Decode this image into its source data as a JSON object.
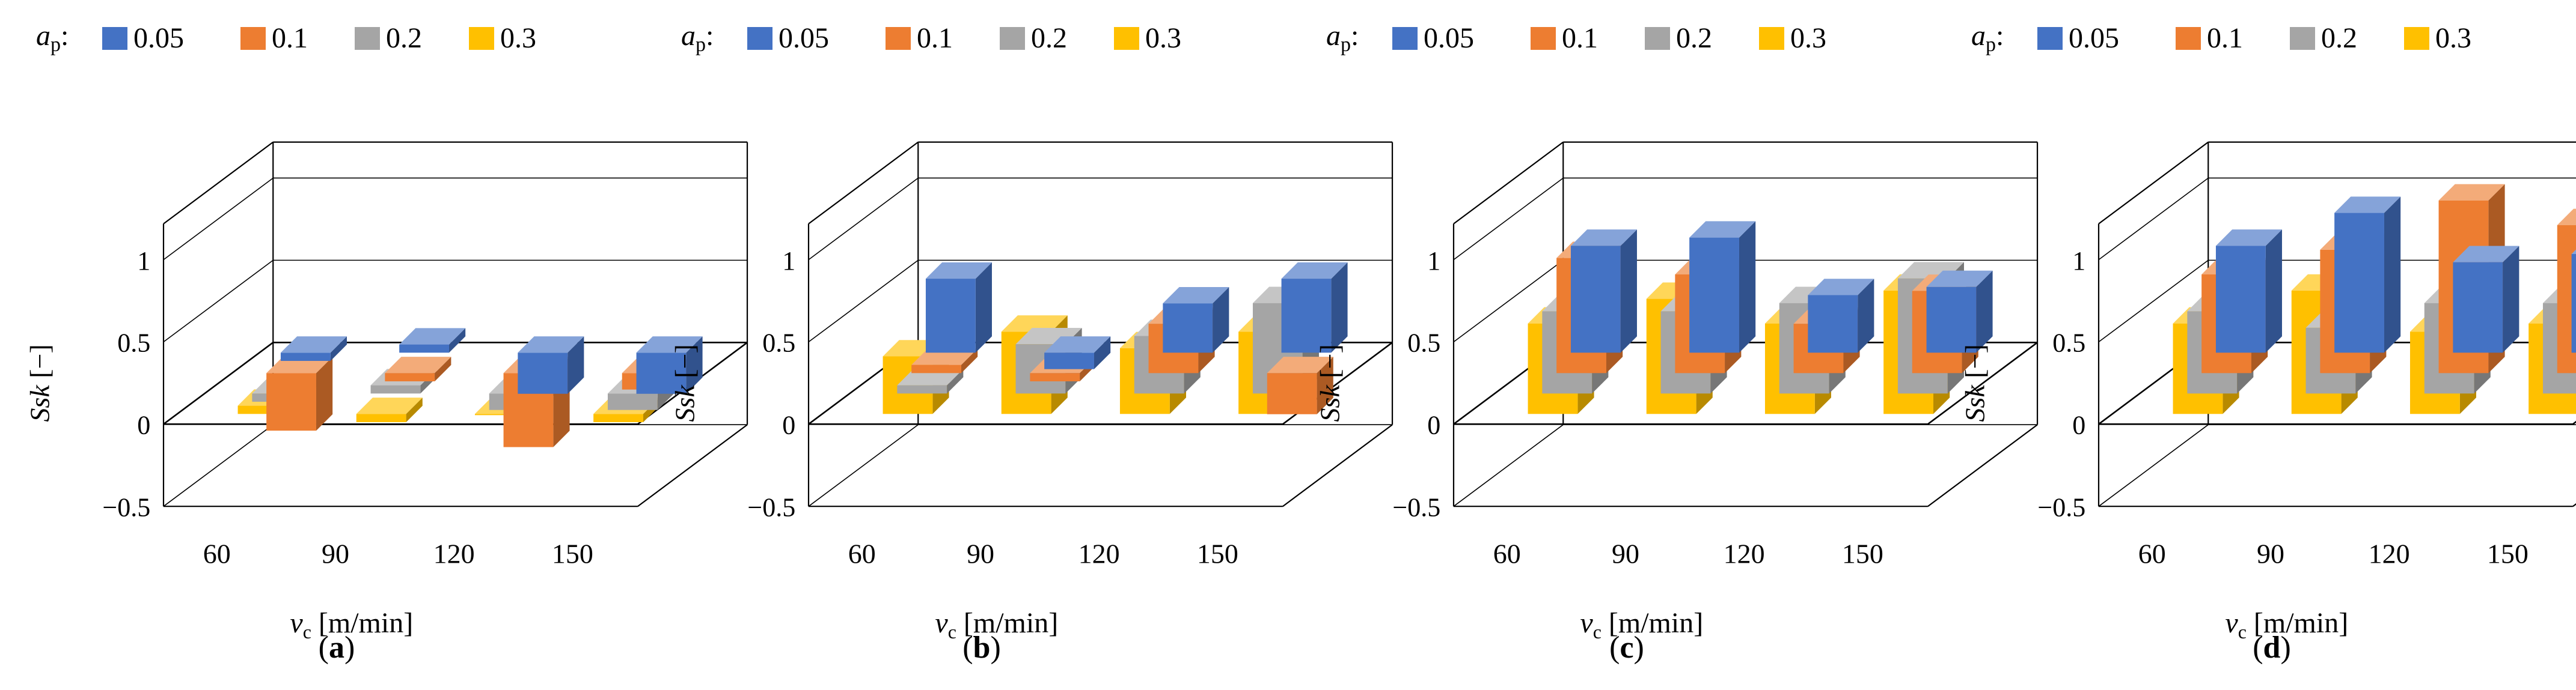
{
  "figure": {
    "legend_var": "a",
    "legend_sub": "p",
    "legend_colon": ":",
    "xlabel_var": "v",
    "xlabel_sub": "c",
    "xlabel_unit": "[m/min]",
    "ylabel_var": "Ssk",
    "ylabel_unit": "[−]"
  },
  "colors": {
    "0.05": "#4472C4",
    "0.1": "#ED7D31",
    "0.2": "#A5A5A5",
    "0.3": "#FFC000"
  },
  "chart_data": [
    {
      "type": "bar",
      "panel_label": "a",
      "categories": [
        "60",
        "90",
        "120",
        "150"
      ],
      "series": [
        {
          "name": "0.05",
          "values": [
            -0.05,
            0.05,
            -0.25,
            -0.25
          ]
        },
        {
          "name": "0.1",
          "values": [
            -0.35,
            -0.05,
            -0.45,
            -0.1
          ]
        },
        {
          "name": "0.2",
          "values": [
            -0.05,
            0.05,
            -0.1,
            -0.1
          ]
        },
        {
          "name": "0.3",
          "values": [
            0.05,
            -0.05,
            0.0,
            -0.05
          ]
        }
      ],
      "legend_title": "a_p",
      "xlabel": "v_c [m/min]",
      "ylabel": "Ssk [−]",
      "yticks": [
        "−0.5",
        "0",
        "0.5",
        "1"
      ],
      "ylim": [
        -0.5,
        1
      ]
    },
    {
      "type": "bar",
      "panel_label": "b",
      "categories": [
        "60",
        "90",
        "120",
        "150"
      ],
      "series": [
        {
          "name": "0.05",
          "values": [
            0.45,
            -0.1,
            0.3,
            0.45
          ]
        },
        {
          "name": "0.1",
          "values": [
            0.05,
            -0.05,
            0.3,
            -0.25
          ]
        },
        {
          "name": "0.2",
          "values": [
            0.05,
            0.3,
            0.35,
            0.55
          ]
        },
        {
          "name": "0.3",
          "values": [
            0.35,
            0.5,
            0.4,
            0.5
          ]
        }
      ],
      "legend_title": "a_p",
      "xlabel": "v_c [m/min]",
      "ylabel": "Ssk [−]",
      "yticks": [
        "−0.5",
        "0",
        "0.5",
        "1"
      ],
      "ylim": [
        -0.5,
        1
      ]
    },
    {
      "type": "bar",
      "panel_label": "c",
      "categories": [
        "60",
        "90",
        "120",
        "150"
      ],
      "series": [
        {
          "name": "0.05",
          "values": [
            0.65,
            0.7,
            0.35,
            0.4
          ]
        },
        {
          "name": "0.1",
          "values": [
            0.7,
            0.6,
            0.3,
            0.5
          ]
        },
        {
          "name": "0.2",
          "values": [
            0.5,
            0.5,
            0.55,
            0.7
          ]
        },
        {
          "name": "0.3",
          "values": [
            0.55,
            0.7,
            0.55,
            0.75
          ]
        }
      ],
      "legend_title": "a_p",
      "xlabel": "v_c [m/min]",
      "ylabel": "Ssk [−]",
      "yticks": [
        "−0.5",
        "0",
        "0.5",
        "1"
      ],
      "ylim": [
        -0.5,
        1
      ]
    },
    {
      "type": "bar",
      "panel_label": "d",
      "categories": [
        "60",
        "90",
        "120",
        "150"
      ],
      "series": [
        {
          "name": "0.05",
          "values": [
            0.65,
            0.85,
            0.55,
            0.6
          ]
        },
        {
          "name": "0.1",
          "values": [
            0.6,
            0.75,
            1.05,
            0.9
          ]
        },
        {
          "name": "0.2",
          "values": [
            0.5,
            0.4,
            0.55,
            0.55
          ]
        },
        {
          "name": "0.3",
          "values": [
            0.55,
            0.75,
            0.5,
            0.55
          ]
        }
      ],
      "legend_title": "a_p",
      "xlabel": "v_c [m/min]",
      "ylabel": "Ssk [−]",
      "yticks": [
        "−0.5",
        "0",
        "0.5",
        "1"
      ],
      "ylim": [
        -0.5,
        1
      ]
    }
  ]
}
